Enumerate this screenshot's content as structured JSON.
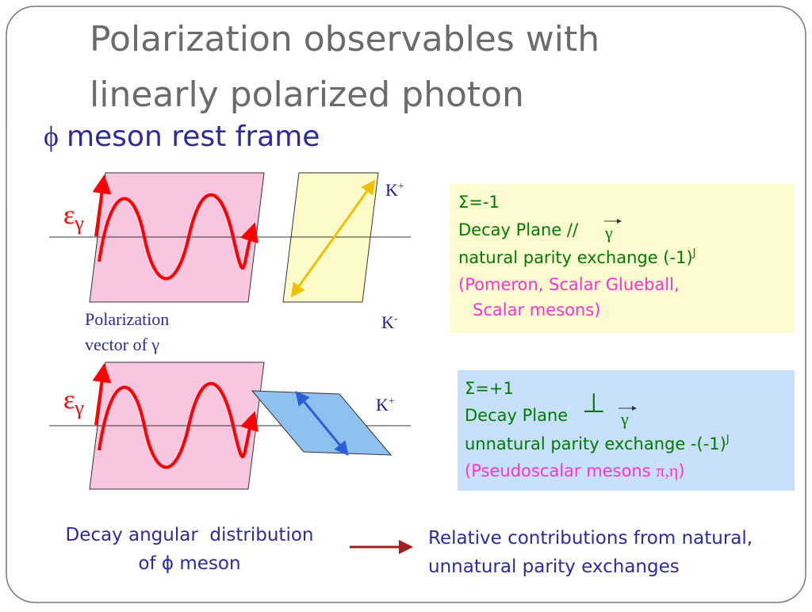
{
  "title": {
    "line1": "Polarization observables with",
    "line2": "linearly polarized photon"
  },
  "subtitle": {
    "symbol": "ϕ",
    "text": "meson rest frame"
  },
  "diagram1": {
    "epsilon": "ε",
    "gamma": "γ",
    "k_plus": {
      "letter": "K",
      "charge": "+"
    },
    "k_minus": {
      "letter": "K",
      "charge": "-"
    },
    "caption": [
      "Polarization",
      "vector of γ"
    ]
  },
  "diagram2": {
    "epsilon": "ε",
    "gamma": "γ",
    "k_plus": {
      "letter": "K",
      "charge": "+"
    }
  },
  "box1": {
    "sigma": "Σ=-1",
    "line2": "Decay Plane //",
    "gamma": "γ",
    "line3": "natural parity exchange (-1)",
    "sup": "J",
    "line4": "(Pomeron, Scalar Glueball,",
    "line5": "Scalar mesons)"
  },
  "box2": {
    "sigma": "Σ=+1",
    "line2": "Decay Plane",
    "perp": "⊥",
    "gamma": "γ",
    "line3": "unnatural parity exchange -(-1)",
    "sup": "J",
    "line4": "(Pseudoscalar mesons ",
    "line4_symbols": "π,η",
    "line4_end": ")"
  },
  "footer": {
    "left": [
      "Decay angular  distribution",
      "of ϕ meson"
    ],
    "right": [
      "Relative contributions from natural,",
      "unnatural parity exchanges"
    ]
  }
}
